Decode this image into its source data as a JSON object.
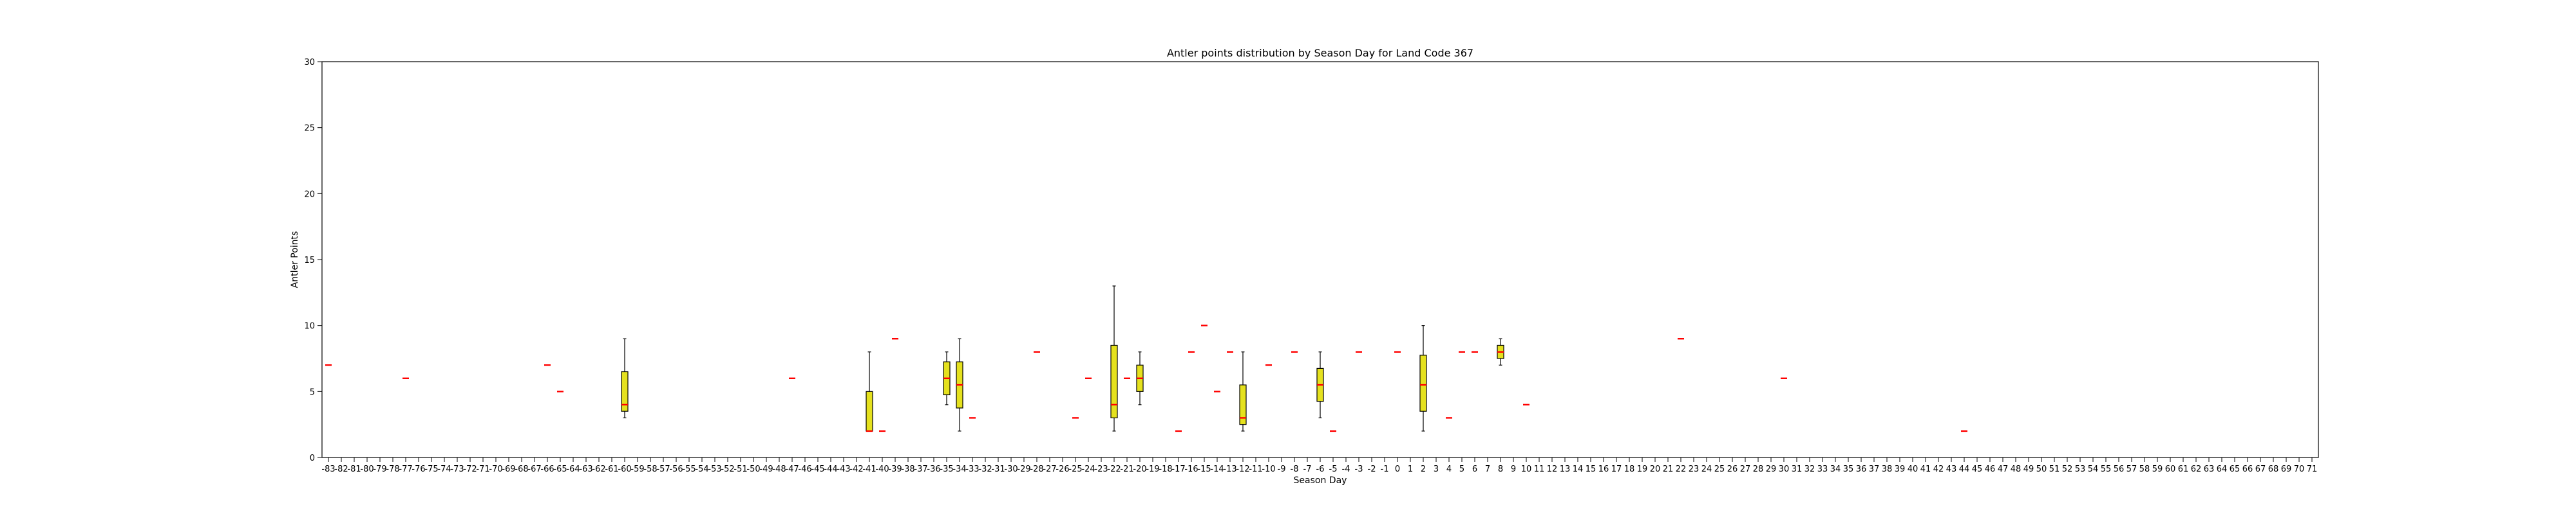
{
  "chart_data": {
    "type": "box",
    "title": "Antler points distribution by Season Day for Land Code 367",
    "xlabel": "Season Day",
    "ylabel": "Antler Points",
    "ylim": [
      0,
      30
    ],
    "yticks": [
      0,
      5,
      10,
      15,
      20,
      25,
      30
    ],
    "x_range": [
      -83,
      71
    ],
    "grid": false,
    "colors": {
      "box_fill": "#e5e11e",
      "median": "#ff0000",
      "edge": "#000000"
    },
    "boxes": [
      {
        "day": -83,
        "min": 7,
        "q1": 7,
        "median": 7,
        "q3": 7,
        "max": 7
      },
      {
        "day": -77,
        "min": 6,
        "q1": 6,
        "median": 6,
        "q3": 6,
        "max": 6
      },
      {
        "day": -66,
        "min": 7,
        "q1": 7,
        "median": 7,
        "q3": 7,
        "max": 7
      },
      {
        "day": -65,
        "min": 5,
        "q1": 5,
        "median": 5,
        "q3": 5,
        "max": 5
      },
      {
        "day": -60,
        "min": 3,
        "q1": 3.5,
        "median": 4,
        "q3": 6.5,
        "max": 9
      },
      {
        "day": -47,
        "min": 6,
        "q1": 6,
        "median": 6,
        "q3": 6,
        "max": 6
      },
      {
        "day": -41,
        "min": 2,
        "q1": 2,
        "median": 2,
        "q3": 5,
        "max": 8
      },
      {
        "day": -40,
        "min": 2,
        "q1": 2,
        "median": 2,
        "q3": 2,
        "max": 2
      },
      {
        "day": -39,
        "min": 9,
        "q1": 9,
        "median": 9,
        "q3": 9,
        "max": 9
      },
      {
        "day": -35,
        "min": 4,
        "q1": 4.75,
        "median": 6,
        "q3": 7.25,
        "max": 8
      },
      {
        "day": -34,
        "min": 2,
        "q1": 3.75,
        "median": 5.5,
        "q3": 7.25,
        "max": 9
      },
      {
        "day": -33,
        "min": 3,
        "q1": 3,
        "median": 3,
        "q3": 3,
        "max": 3
      },
      {
        "day": -28,
        "min": 8,
        "q1": 8,
        "median": 8,
        "q3": 8,
        "max": 8
      },
      {
        "day": -25,
        "min": 3,
        "q1": 3,
        "median": 3,
        "q3": 3,
        "max": 3
      },
      {
        "day": -24,
        "min": 6,
        "q1": 6,
        "median": 6,
        "q3": 6,
        "max": 6
      },
      {
        "day": -22,
        "min": 2,
        "q1": 3,
        "median": 4,
        "q3": 8.5,
        "max": 13
      },
      {
        "day": -21,
        "min": 6,
        "q1": 6,
        "median": 6,
        "q3": 6,
        "max": 6
      },
      {
        "day": -20,
        "min": 4,
        "q1": 5,
        "median": 6,
        "q3": 7,
        "max": 8
      },
      {
        "day": -17,
        "min": 2,
        "q1": 2,
        "median": 2,
        "q3": 2,
        "max": 2
      },
      {
        "day": -16,
        "min": 8,
        "q1": 8,
        "median": 8,
        "q3": 8,
        "max": 8
      },
      {
        "day": -15,
        "min": 10,
        "q1": 10,
        "median": 10,
        "q3": 10,
        "max": 10
      },
      {
        "day": -14,
        "min": 5,
        "q1": 5,
        "median": 5,
        "q3": 5,
        "max": 5
      },
      {
        "day": -13,
        "min": 8,
        "q1": 8,
        "median": 8,
        "q3": 8,
        "max": 8
      },
      {
        "day": -12,
        "min": 2,
        "q1": 2.5,
        "median": 3,
        "q3": 5.5,
        "max": 8
      },
      {
        "day": -10,
        "min": 7,
        "q1": 7,
        "median": 7,
        "q3": 7,
        "max": 7
      },
      {
        "day": -8,
        "min": 8,
        "q1": 8,
        "median": 8,
        "q3": 8,
        "max": 8
      },
      {
        "day": -6,
        "min": 3,
        "q1": 4.25,
        "median": 5.5,
        "q3": 6.75,
        "max": 8
      },
      {
        "day": -5,
        "min": 2,
        "q1": 2,
        "median": 2,
        "q3": 2,
        "max": 2
      },
      {
        "day": -3,
        "min": 8,
        "q1": 8,
        "median": 8,
        "q3": 8,
        "max": 8
      },
      {
        "day": 0,
        "min": 8,
        "q1": 8,
        "median": 8,
        "q3": 8,
        "max": 8
      },
      {
        "day": 2,
        "min": 2,
        "q1": 3.5,
        "median": 5.5,
        "q3": 7.75,
        "max": 10
      },
      {
        "day": 4,
        "min": 3,
        "q1": 3,
        "median": 3,
        "q3": 3,
        "max": 3
      },
      {
        "day": 5,
        "min": 8,
        "q1": 8,
        "median": 8,
        "q3": 8,
        "max": 8
      },
      {
        "day": 6,
        "min": 8,
        "q1": 8,
        "median": 8,
        "q3": 8,
        "max": 8
      },
      {
        "day": 8,
        "min": 7,
        "q1": 7.5,
        "median": 8,
        "q3": 8.5,
        "max": 9
      },
      {
        "day": 10,
        "min": 4,
        "q1": 4,
        "median": 4,
        "q3": 4,
        "max": 4
      },
      {
        "day": 22,
        "min": 9,
        "q1": 9,
        "median": 9,
        "q3": 9,
        "max": 9
      },
      {
        "day": 30,
        "min": 6,
        "q1": 6,
        "median": 6,
        "q3": 6,
        "max": 6
      },
      {
        "day": 44,
        "min": 2,
        "q1": 2,
        "median": 2,
        "q3": 2,
        "max": 2
      }
    ]
  }
}
